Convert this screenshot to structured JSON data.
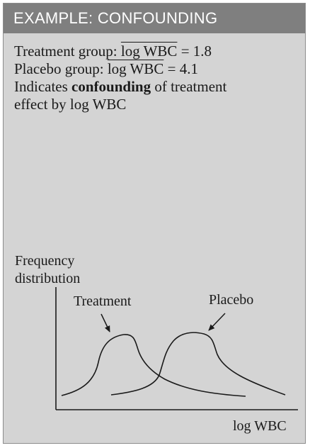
{
  "header": {
    "title": "EXAMPLE: CONFOUNDING"
  },
  "body": {
    "treatment_line": {
      "prefix": "Treatment group: ",
      "variable": "log WBC",
      "suffix": " = 1.8"
    },
    "placebo_line": {
      "prefix": "Placebo group: ",
      "variable": "log WBC",
      "suffix": " = 4.1"
    },
    "conclusion": {
      "prefix": "Indicates ",
      "emphasis": "confounding",
      "suffix": " of treatment",
      "line2": "effect by log WBC"
    }
  },
  "diagram": {
    "y_axis_label_line1": "Frequency",
    "y_axis_label_line2": "distribution",
    "x_axis_label": "log WBC",
    "treatment_label": "Treatment",
    "placebo_label": "Placebo",
    "line_color": "#1a1a1a"
  }
}
